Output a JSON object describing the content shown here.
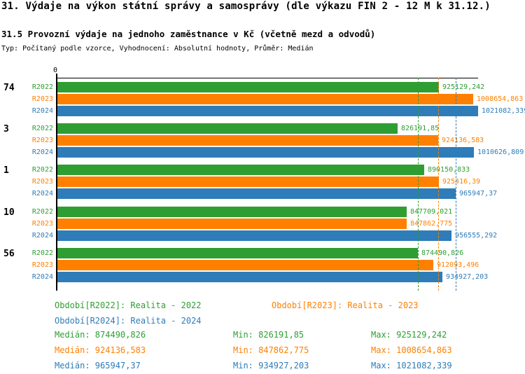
{
  "title": "31. Výdaje na výkon státní správy a samosprávy (dle výkazu FIN 2 - 12 M k 31.12.)",
  "subtitle": "31.5 Provozní výdaje na jednoho zaměstnance v Kč (včetně mezd a odvodů)",
  "meta_line": "Typ: Počítaný podle vzorce, Vyhodnocení: Absolutní hodnoty, Průměr: Medián",
  "colors": {
    "r2022": "#2E9E32",
    "r2023": "#FF8000",
    "r2024": "#2E7CB8"
  },
  "chart_data": {
    "type": "bar",
    "orientation": "horizontal",
    "axis_zero_label": "0",
    "xlim": [
      0,
      1021082.339
    ],
    "grid": "median-lines-per-series",
    "legend_position": "bottom",
    "categories": [
      "74",
      "3",
      "1",
      "10",
      "56"
    ],
    "series": [
      {
        "key": "r2022",
        "name": "R2022",
        "color": "#2E9E32",
        "values": [
          925129.242,
          826191.85,
          890150.833,
          847709.021,
          874490.826
        ],
        "value_labels": [
          "925129,242",
          "826191,85",
          "890150,833",
          "847709,021",
          "874490,826"
        ],
        "median": 874490.826
      },
      {
        "key": "r2023",
        "name": "R2023",
        "color": "#FF8000",
        "values": [
          1008654.863,
          924136.583,
          925416.39,
          847862.775,
          912093.496
        ],
        "value_labels": [
          "1008654,863",
          "924136,583",
          "925416,39",
          "847862,775",
          "912093,496"
        ],
        "median": 924136.583
      },
      {
        "key": "r2024",
        "name": "R2024",
        "color": "#2E7CB8",
        "values": [
          1021082.339,
          1010626.809,
          965947.37,
          956555.292,
          934927.203
        ],
        "value_labels": [
          "1021082,339",
          "1010626,809",
          "965947,37",
          "956555,292",
          "934927,203"
        ],
        "median": 965947.37
      }
    ]
  },
  "legend": [
    {
      "label": "Období[R2022]: Realita - 2022",
      "series": "r2022"
    },
    {
      "label": "Období[R2023]: Realita - 2023",
      "series": "r2023"
    },
    {
      "label": "Období[R2024]: Realita - 2024",
      "series": "r2024"
    }
  ],
  "stats": [
    {
      "series": "r2022",
      "median": "Medián: 874490,826",
      "min": "Min: 826191,85",
      "max": "Max: 925129,242"
    },
    {
      "series": "r2023",
      "median": "Medián: 924136,583",
      "min": "Min: 847862,775",
      "max": "Max: 1008654,863"
    },
    {
      "series": "r2024",
      "median": "Medián: 965947,37",
      "min": "Min: 934927,203",
      "max": "Max: 1021082,339"
    }
  ]
}
